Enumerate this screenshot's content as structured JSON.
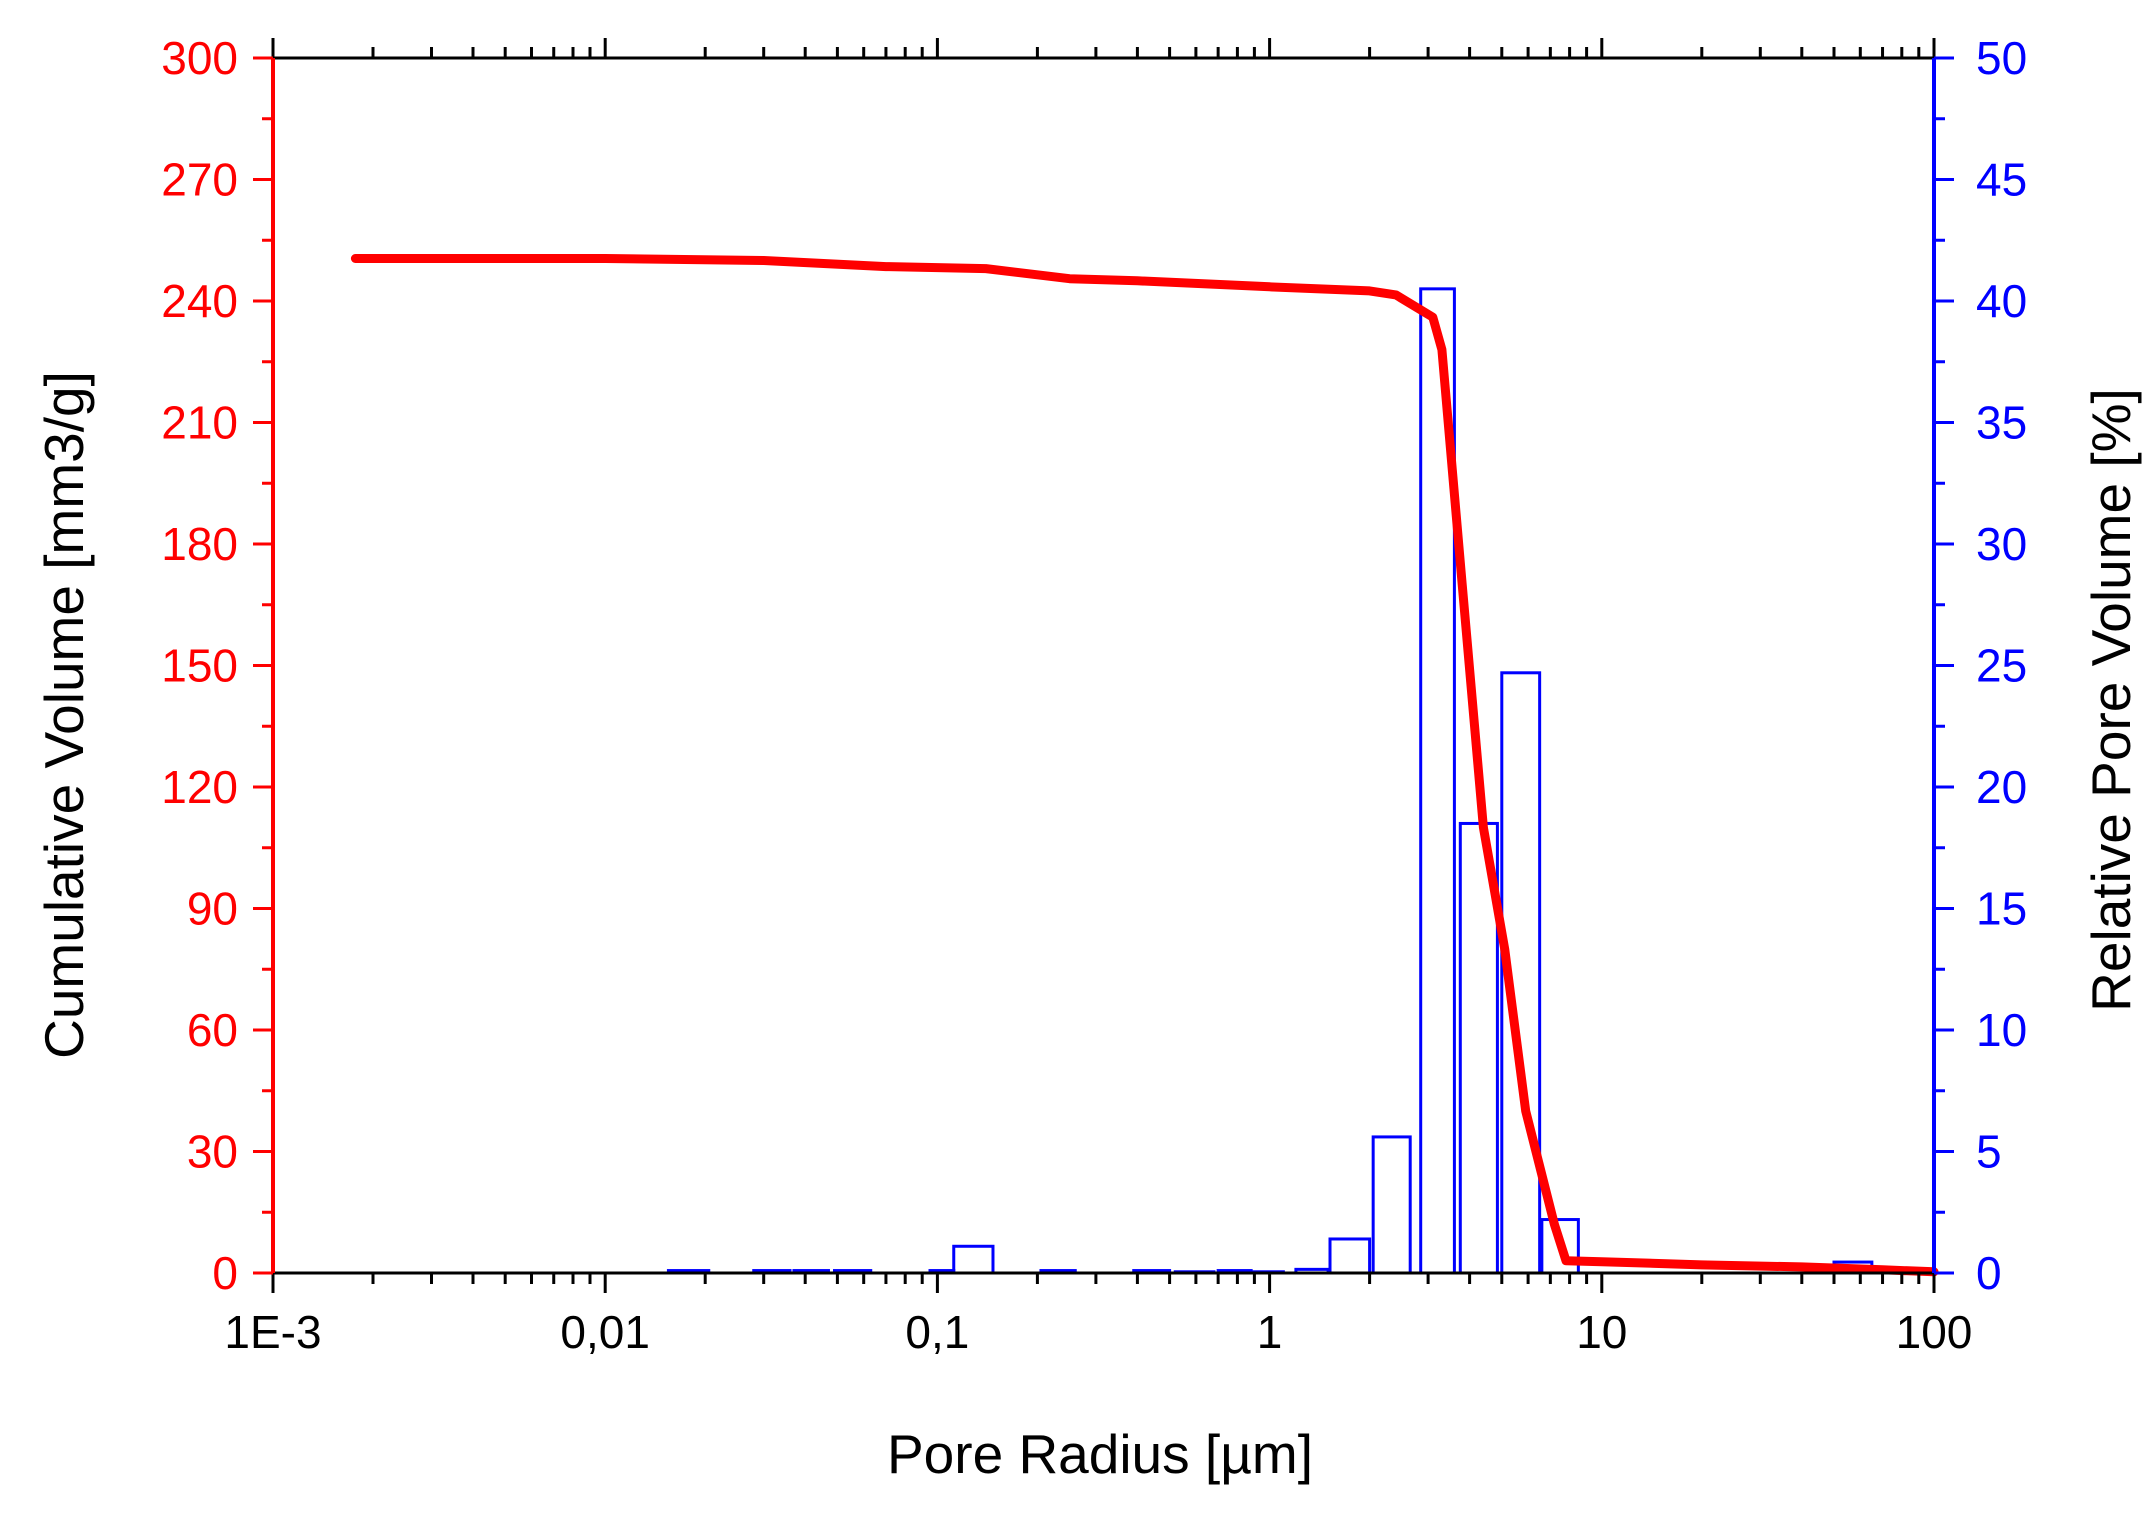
{
  "chart_data": {
    "type": "bar",
    "title": "",
    "xlabel": "Pore Radius [µm]",
    "ylabel_left": "Cumulative Volume [mm3/g]",
    "ylabel_right": "Relative Pore Volume [%]",
    "x_scale": "log",
    "xlim": [
      0.001,
      100
    ],
    "ylim_left": [
      0,
      300
    ],
    "ylim_right": [
      0,
      50
    ],
    "x_ticks": [
      {
        "value": 0.001,
        "label": "1E-3"
      },
      {
        "value": 0.01,
        "label": "0,01"
      },
      {
        "value": 0.1,
        "label": "0,1"
      },
      {
        "value": 1,
        "label": "1"
      },
      {
        "value": 10,
        "label": "10"
      },
      {
        "value": 100,
        "label": "100"
      }
    ],
    "y_ticks_left": [
      "0",
      "30",
      "60",
      "90",
      "120",
      "150",
      "180",
      "210",
      "240",
      "270",
      "300"
    ],
    "y_ticks_right": [
      "0",
      "5",
      "10",
      "15",
      "20",
      "25",
      "30",
      "35",
      "40",
      "45",
      "50"
    ],
    "grid": false,
    "left_axis_color": "#ff0000",
    "right_axis_color": "#0000ff",
    "series": [
      {
        "kind": "line",
        "axis": "left",
        "color": "#ff0000",
        "points": [
          {
            "x": 0.00177,
            "y": 250.5
          },
          {
            "x": 0.01,
            "y": 250.5
          },
          {
            "x": 0.03,
            "y": 250
          },
          {
            "x": 0.07,
            "y": 248.5
          },
          {
            "x": 0.14,
            "y": 248
          },
          {
            "x": 0.25,
            "y": 245.5
          },
          {
            "x": 0.4,
            "y": 245
          },
          {
            "x": 1.0,
            "y": 243.5
          },
          {
            "x": 2.0,
            "y": 242.5
          },
          {
            "x": 2.4,
            "y": 241.5
          },
          {
            "x": 3.1,
            "y": 236
          },
          {
            "x": 3.3,
            "y": 228
          },
          {
            "x": 3.8,
            "y": 170
          },
          {
            "x": 4.4,
            "y": 110
          },
          {
            "x": 5.1,
            "y": 80
          },
          {
            "x": 5.9,
            "y": 40
          },
          {
            "x": 7.2,
            "y": 12
          },
          {
            "x": 7.8,
            "y": 3
          },
          {
            "x": 10,
            "y": 2.8
          },
          {
            "x": 20,
            "y": 2
          },
          {
            "x": 40,
            "y": 1.5
          },
          {
            "x": 70,
            "y": 0.8
          },
          {
            "x": 100,
            "y": 0.3
          }
        ]
      },
      {
        "kind": "bar",
        "axis": "right",
        "color": "#0000ff",
        "bars": [
          {
            "x0": 0.0155,
            "x1": 0.0205,
            "y": 0.1
          },
          {
            "x0": 0.028,
            "x1": 0.036,
            "y": 0.1
          },
          {
            "x0": 0.037,
            "x1": 0.047,
            "y": 0.1
          },
          {
            "x0": 0.049,
            "x1": 0.063,
            "y": 0.1
          },
          {
            "x0": 0.095,
            "x1": 0.112,
            "y": 0.1
          },
          {
            "x0": 0.112,
            "x1": 0.147,
            "y": 1.1
          },
          {
            "x0": 0.205,
            "x1": 0.26,
            "y": 0.1
          },
          {
            "x0": 0.39,
            "x1": 0.5,
            "y": 0.1
          },
          {
            "x0": 0.52,
            "x1": 0.68,
            "y": 0.05
          },
          {
            "x0": 0.7,
            "x1": 0.88,
            "y": 0.1
          },
          {
            "x0": 0.88,
            "x1": 1.1,
            "y": 0.05
          },
          {
            "x0": 1.2,
            "x1": 1.5,
            "y": 0.15
          },
          {
            "x0": 1.52,
            "x1": 2.0,
            "y": 1.4
          },
          {
            "x0": 2.05,
            "x1": 2.65,
            "y": 5.6
          },
          {
            "x0": 2.85,
            "x1": 3.6,
            "y": 40.5
          },
          {
            "x0": 3.75,
            "x1": 4.85,
            "y": 18.5
          },
          {
            "x0": 5.0,
            "x1": 6.5,
            "y": 24.7
          },
          {
            "x0": 6.6,
            "x1": 8.5,
            "y": 2.2
          },
          {
            "x0": 50,
            "x1": 65,
            "y": 0.45
          }
        ]
      }
    ]
  }
}
